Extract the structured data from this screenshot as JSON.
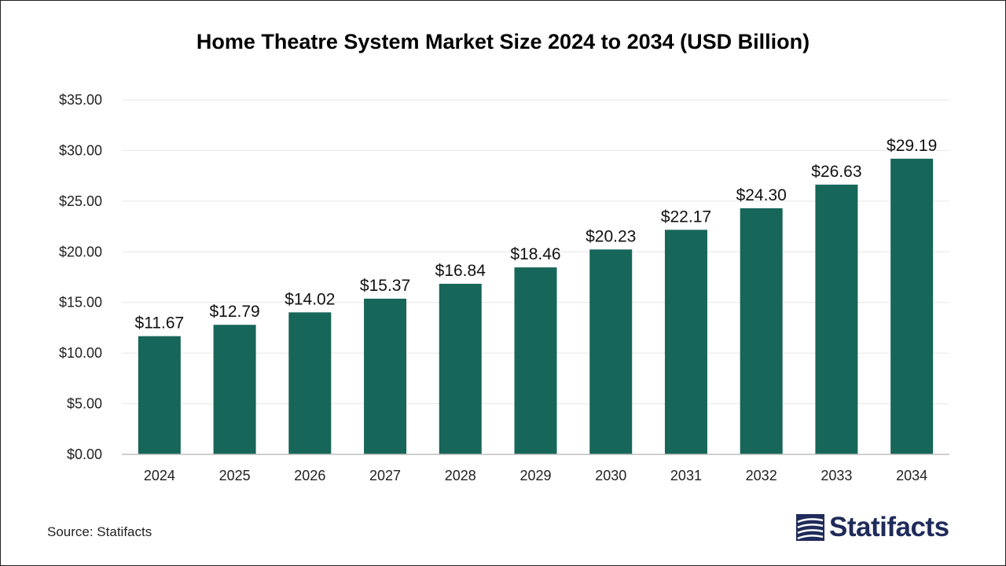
{
  "title": "Home Theatre System Market Size 2024 to 2034 (USD Billion)",
  "source": "Source: Statifacts",
  "brand": {
    "name": "Statifacts",
    "icon": "statifacts-logo-icon",
    "color": "#1f2b5a"
  },
  "colors": {
    "bar": "#17665a",
    "grid": "#e6e6e6",
    "axis": "#bfbfbf"
  },
  "chart_data": {
    "type": "bar",
    "title": "Home Theatre System Market Size 2024 to 2034 (USD Billion)",
    "xlabel": "",
    "ylabel": "",
    "categories": [
      "2024",
      "2025",
      "2026",
      "2027",
      "2028",
      "2029",
      "2030",
      "2031",
      "2032",
      "2033",
      "2034"
    ],
    "values": [
      11.67,
      12.79,
      14.02,
      15.37,
      16.84,
      18.46,
      20.23,
      22.17,
      24.3,
      26.63,
      29.19
    ],
    "value_labels": [
      "$11.67",
      "$12.79",
      "$14.02",
      "$15.37",
      "$16.84",
      "$18.46",
      "$20.23",
      "$22.17",
      "$24.30",
      "$26.63",
      "$29.19"
    ],
    "ylim": [
      0,
      35
    ],
    "yticks": [
      0,
      5,
      10,
      15,
      20,
      25,
      30,
      35
    ],
    "ytick_labels": [
      "$0.00",
      "$5.00",
      "$10.00",
      "$15.00",
      "$20.00",
      "$25.00",
      "$30.00",
      "$35.00"
    ],
    "grid": true,
    "legend": "none"
  }
}
